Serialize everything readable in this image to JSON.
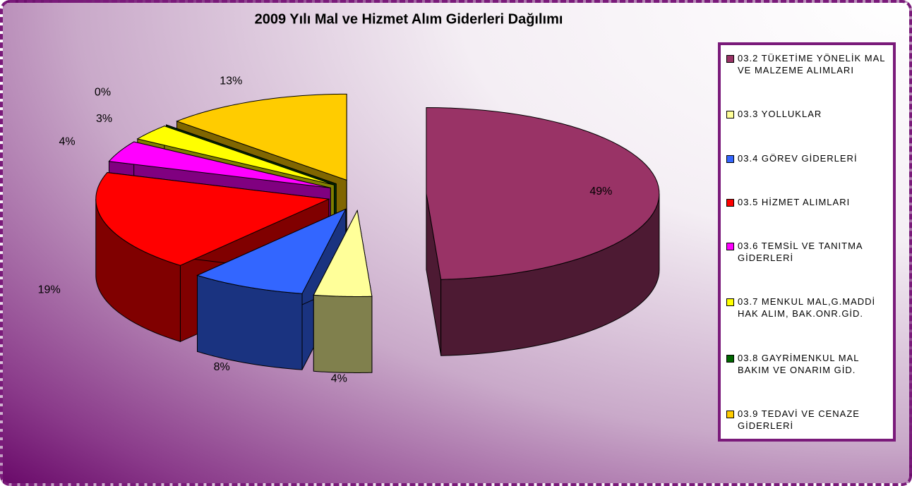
{
  "chart_data": {
    "type": "pie3d",
    "title": "2009 Yılı Mal ve Hizmet Alım Giderleri Dağılımı",
    "categories": [
      "03.2 TÜKETİME YÖNELİK MAL VE MALZEME ALIMLARI",
      "03.3 YOLLUKLAR",
      "03.4 GÖREV GİDERLERİ",
      "03.5 HİZMET ALIMLARI",
      "03.6 TEMSİL VE TANITMA GİDERLERİ",
      "03.7 MENKUL MAL,G.MADDİ HAK ALIM, BAK.ONR.GİD.",
      "03.8 GAYRİMENKUL MAL BAKIM VE ONARIM GİD.",
      "03.9 TEDAVİ VE CENAZE GİDERLERİ"
    ],
    "values": [
      49,
      4,
      8,
      19,
      4,
      3,
      0,
      13
    ],
    "value_labels": [
      "49%",
      "4%",
      "8%",
      "19%",
      "4%",
      "3%",
      "0%",
      "13%"
    ],
    "colors": [
      "#993366",
      "#FFFF99",
      "#3366FF",
      "#FF0000",
      "#FF00FF",
      "#FFFF00",
      "#006600",
      "#FFCC00"
    ],
    "legend": "right"
  }
}
